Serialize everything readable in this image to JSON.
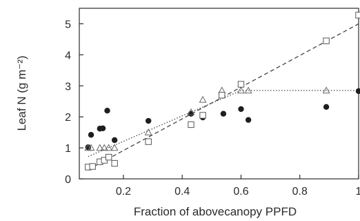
{
  "chart_data": {
    "type": "scatter",
    "title": "",
    "xlabel": "Fraction of abovecanopy PPFD",
    "ylabel": "Leaf N (g m⁻²)",
    "xlim": [
      0.05,
      1.0
    ],
    "ylim": [
      0,
      5.5
    ],
    "x_ticks": [
      0.2,
      0.4,
      0.6,
      0.8,
      1
    ],
    "x_tick_labels": [
      "0.2",
      "0.4",
      "0.6",
      "0.8",
      "1"
    ],
    "y_ticks": [
      0,
      1,
      2,
      3,
      4,
      5
    ],
    "y_tick_labels": [
      "0",
      "1",
      "2",
      "3",
      "4",
      "5"
    ],
    "grid": false,
    "series": [
      {
        "marker": "filled-circle",
        "points": [
          {
            "x": 0.08,
            "y": 1.02
          },
          {
            "x": 0.09,
            "y": 1.42
          },
          {
            "x": 0.12,
            "y": 1.62
          },
          {
            "x": 0.13,
            "y": 1.63
          },
          {
            "x": 0.145,
            "y": 2.2
          },
          {
            "x": 0.17,
            "y": 1.25
          },
          {
            "x": 0.285,
            "y": 1.87
          },
          {
            "x": 0.43,
            "y": 2.1
          },
          {
            "x": 0.47,
            "y": 1.98
          },
          {
            "x": 0.54,
            "y": 2.1
          },
          {
            "x": 0.6,
            "y": 2.25
          },
          {
            "x": 0.625,
            "y": 1.9
          },
          {
            "x": 0.89,
            "y": 2.32
          },
          {
            "x": 1.0,
            "y": 2.83
          }
        ]
      },
      {
        "marker": "open-triangle",
        "points": [
          {
            "x": 0.08,
            "y": 1.0
          },
          {
            "x": 0.09,
            "y": 1.0
          },
          {
            "x": 0.12,
            "y": 1.0
          },
          {
            "x": 0.135,
            "y": 1.0
          },
          {
            "x": 0.15,
            "y": 1.0
          },
          {
            "x": 0.17,
            "y": 1.0
          },
          {
            "x": 0.285,
            "y": 1.5
          },
          {
            "x": 0.43,
            "y": 2.15
          },
          {
            "x": 0.47,
            "y": 2.55
          },
          {
            "x": 0.535,
            "y": 2.85
          },
          {
            "x": 0.6,
            "y": 2.85
          },
          {
            "x": 0.625,
            "y": 2.85
          },
          {
            "x": 0.89,
            "y": 2.85
          }
        ]
      },
      {
        "marker": "open-square",
        "points": [
          {
            "x": 0.08,
            "y": 0.38
          },
          {
            "x": 0.095,
            "y": 0.4
          },
          {
            "x": 0.12,
            "y": 0.55
          },
          {
            "x": 0.135,
            "y": 0.6
          },
          {
            "x": 0.15,
            "y": 0.7
          },
          {
            "x": 0.17,
            "y": 0.5
          },
          {
            "x": 0.285,
            "y": 1.2
          },
          {
            "x": 0.43,
            "y": 1.75
          },
          {
            "x": 0.47,
            "y": 2.05
          },
          {
            "x": 0.535,
            "y": 2.7
          },
          {
            "x": 0.6,
            "y": 3.05
          },
          {
            "x": 0.89,
            "y": 4.45
          },
          {
            "x": 1.0,
            "y": 5.28
          }
        ]
      }
    ],
    "fit_lines": [
      {
        "style": "dashed",
        "points": [
          {
            "x": 0.08,
            "y": 0.3
          },
          {
            "x": 1.0,
            "y": 5.0
          }
        ]
      },
      {
        "style": "dotted",
        "points": [
          {
            "x": 0.08,
            "y": 0.72
          },
          {
            "x": 0.6,
            "y": 2.85
          },
          {
            "x": 1.0,
            "y": 2.85
          }
        ]
      }
    ]
  }
}
